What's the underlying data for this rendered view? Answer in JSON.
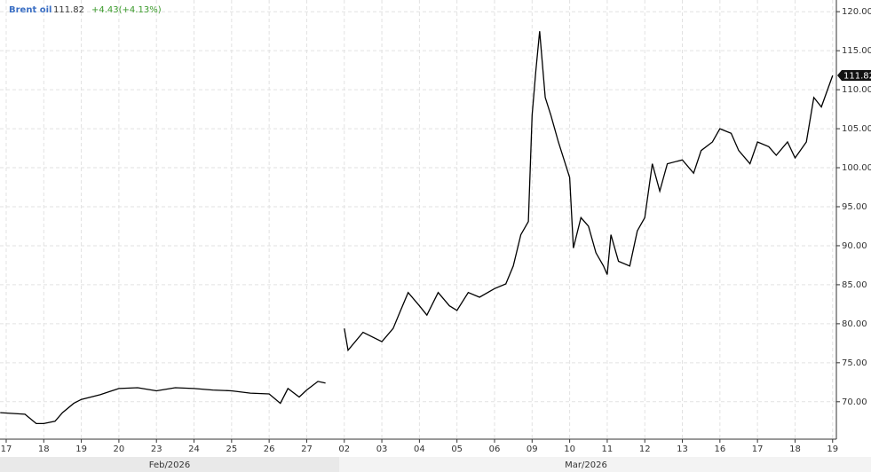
{
  "chart_data": {
    "type": "line",
    "title": "Brent oil",
    "price": "111.82",
    "change": "+4.43(+4.13%)",
    "months": [
      "Feb/2026",
      "Mar/2026"
    ],
    "xlim": [
      -0.165,
      22.1
    ],
    "xticks": [
      {
        "value": 0,
        "label": "17"
      },
      {
        "value": 1,
        "label": "18"
      },
      {
        "value": 2,
        "label": "19"
      },
      {
        "value": 3,
        "label": "20"
      },
      {
        "value": 4,
        "label": "23"
      },
      {
        "value": 5,
        "label": "24"
      },
      {
        "value": 6,
        "label": "25"
      },
      {
        "value": 7,
        "label": "26"
      },
      {
        "value": 8,
        "label": "27"
      },
      {
        "value": 9,
        "label": "02"
      },
      {
        "value": 10,
        "label": "03"
      },
      {
        "value": 11,
        "label": "04"
      },
      {
        "value": 12,
        "label": "05"
      },
      {
        "value": 13,
        "label": "06"
      },
      {
        "value": 14,
        "label": "09"
      },
      {
        "value": 15,
        "label": "10"
      },
      {
        "value": 16,
        "label": "11"
      },
      {
        "value": 17,
        "label": "12"
      },
      {
        "value": 18,
        "label": "13"
      },
      {
        "value": 19,
        "label": "16"
      },
      {
        "value": 20,
        "label": "17"
      },
      {
        "value": 21,
        "label": "18"
      },
      {
        "value": 22,
        "label": "19"
      }
    ],
    "ylim": [
      65.2,
      121.5
    ],
    "yticks": [
      {
        "value": 70,
        "label": "70.00"
      },
      {
        "value": 75,
        "label": "75.00"
      },
      {
        "value": 80,
        "label": "80.00"
      },
      {
        "value": 85,
        "label": "85.00"
      },
      {
        "value": 90,
        "label": "90.00"
      },
      {
        "value": 95,
        "label": "95.00"
      },
      {
        "value": 100,
        "label": "100.00"
      },
      {
        "value": 105,
        "label": "105.00"
      },
      {
        "value": 110,
        "label": "110.00"
      },
      {
        "value": 115,
        "label": "115.00"
      },
      {
        "value": 120,
        "label": "120.00"
      }
    ],
    "grid": true,
    "series": [
      {
        "name": "Brent oil",
        "color": "#000000",
        "x": [
          -0.16,
          0.5,
          0.8,
          1.0,
          1.3,
          1.5,
          1.8,
          2.0,
          2.5,
          3.0,
          3.5,
          4.0,
          4.5,
          5.0,
          5.5,
          6.0,
          6.5,
          7.0,
          7.3,
          7.5,
          7.8,
          8.0,
          8.3,
          8.5,
          8.75,
          9.0,
          9.1,
          9.5,
          10.0,
          10.3,
          10.5,
          10.7,
          11.0,
          11.2,
          11.5,
          11.8,
          12.0,
          12.3,
          12.6,
          13.0,
          13.3,
          13.5,
          13.7,
          13.9,
          14.0,
          14.1,
          14.2,
          14.35,
          14.5,
          14.7,
          15.0,
          15.1,
          15.3,
          15.5,
          15.7,
          15.9,
          16.0,
          16.1,
          16.3,
          16.6,
          16.8,
          17.0,
          17.2,
          17.4,
          17.6,
          18.0,
          18.3,
          18.5,
          18.8,
          19.0,
          19.3,
          19.5,
          19.8,
          20.0,
          20.3,
          20.5,
          20.8,
          21.0,
          21.3,
          21.5,
          21.7,
          22.0
        ],
        "values": [
          68.6,
          68.4,
          67.2,
          67.2,
          67.5,
          68.6,
          69.8,
          70.3,
          70.9,
          71.7,
          71.8,
          71.4,
          71.8,
          71.7,
          71.5,
          71.4,
          71.1,
          71.0,
          69.8,
          71.7,
          70.6,
          71.5,
          72.6,
          72.4,
          null,
          79.4,
          76.6,
          78.9,
          77.7,
          79.4,
          81.7,
          84.0,
          82.3,
          81.1,
          84.0,
          82.3,
          81.7,
          84.0,
          83.4,
          84.5,
          85.1,
          87.4,
          91.4,
          93.1,
          106.7,
          112.4,
          117.5,
          109.0,
          106.7,
          103.3,
          98.75,
          89.7,
          93.6,
          92.5,
          89.1,
          87.4,
          86.3,
          91.4,
          88.0,
          87.4,
          91.9,
          93.6,
          100.5,
          97.0,
          100.5,
          101.0,
          99.3,
          102.2,
          103.3,
          105.0,
          104.4,
          102.2,
          100.5,
          103.3,
          102.7,
          101.6,
          103.3,
          101.25,
          103.3,
          109.0,
          107.8,
          111.82
        ]
      }
    ]
  }
}
